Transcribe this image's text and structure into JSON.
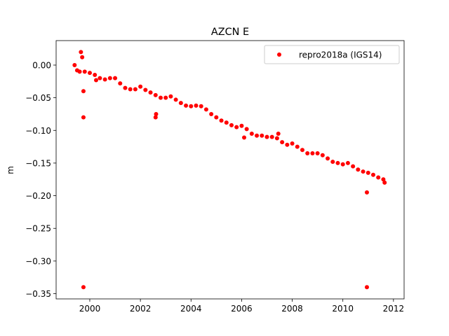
{
  "chart_data": {
    "type": "scatter",
    "title": "AZCN E",
    "xlabel": "",
    "ylabel": "m",
    "xlim": [
      1998.67,
      2012.42
    ],
    "ylim": [
      -0.358,
      0.0375
    ],
    "xticks": [
      2000,
      2002,
      2004,
      2006,
      2008,
      2010,
      2012
    ],
    "xtick_labels": [
      "2000",
      "2002",
      "2004",
      "2006",
      "2008",
      "2010",
      "2012"
    ],
    "yticks": [
      0.0,
      -0.05,
      -0.1,
      -0.15,
      -0.2,
      -0.25,
      -0.3,
      -0.35
    ],
    "ytick_labels": [
      "0.00",
      "−0.05",
      "−0.10",
      "−0.15",
      "−0.20",
      "−0.25",
      "−0.30",
      "−0.35"
    ],
    "grid": false,
    "legend_position": "top-right",
    "series": [
      {
        "name": "repro2018a (IGS14)",
        "color": "#ff0000",
        "marker": "circle",
        "x": [
          1999.4,
          1999.5,
          1999.6,
          1999.8,
          2000.0,
          2000.2,
          2000.4,
          2000.6,
          2000.8,
          2001.0,
          2001.2,
          2001.4,
          2001.6,
          2001.8,
          2002.0,
          2002.2,
          2002.4,
          2002.6,
          2002.8,
          2003.0,
          2003.2,
          2003.4,
          2003.6,
          2003.8,
          2004.0,
          2004.2,
          2004.4,
          2004.6,
          2004.8,
          2005.0,
          2005.2,
          2005.4,
          2005.6,
          2005.8,
          2006.0,
          2006.2,
          2006.4,
          2006.6,
          2006.8,
          2007.0,
          2007.2,
          2007.4,
          2007.6,
          2007.8,
          2008.0,
          2008.2,
          2008.4,
          2008.6,
          2008.8,
          2009.0,
          2009.2,
          2009.4,
          2009.6,
          2009.8,
          2010.0,
          2010.2,
          2010.4,
          2010.6,
          2010.8,
          2011.0,
          2011.2,
          2011.4,
          2011.6,
          2011.65,
          1999.65,
          1999.7,
          1999.75,
          1999.75,
          1999.75,
          2000.25,
          2002.6,
          2002.62,
          2006.1,
          2007.45,
          2010.95,
          2010.95
        ],
        "y": [
          0.0,
          -0.008,
          -0.01,
          -0.01,
          -0.012,
          -0.015,
          -0.02,
          -0.022,
          -0.02,
          -0.02,
          -0.028,
          -0.035,
          -0.037,
          -0.037,
          -0.033,
          -0.038,
          -0.042,
          -0.046,
          -0.05,
          -0.05,
          -0.048,
          -0.053,
          -0.058,
          -0.062,
          -0.063,
          -0.062,
          -0.063,
          -0.068,
          -0.075,
          -0.08,
          -0.085,
          -0.088,
          -0.092,
          -0.095,
          -0.093,
          -0.098,
          -0.105,
          -0.108,
          -0.108,
          -0.11,
          -0.11,
          -0.112,
          -0.118,
          -0.122,
          -0.12,
          -0.125,
          -0.13,
          -0.135,
          -0.135,
          -0.135,
          -0.138,
          -0.143,
          -0.148,
          -0.15,
          -0.152,
          -0.15,
          -0.155,
          -0.16,
          -0.163,
          -0.165,
          -0.168,
          -0.172,
          -0.175,
          -0.18,
          0.02,
          0.012,
          -0.04,
          -0.08,
          -0.34,
          -0.023,
          -0.08,
          -0.075,
          -0.111,
          -0.105,
          -0.195,
          -0.34
        ]
      }
    ]
  }
}
